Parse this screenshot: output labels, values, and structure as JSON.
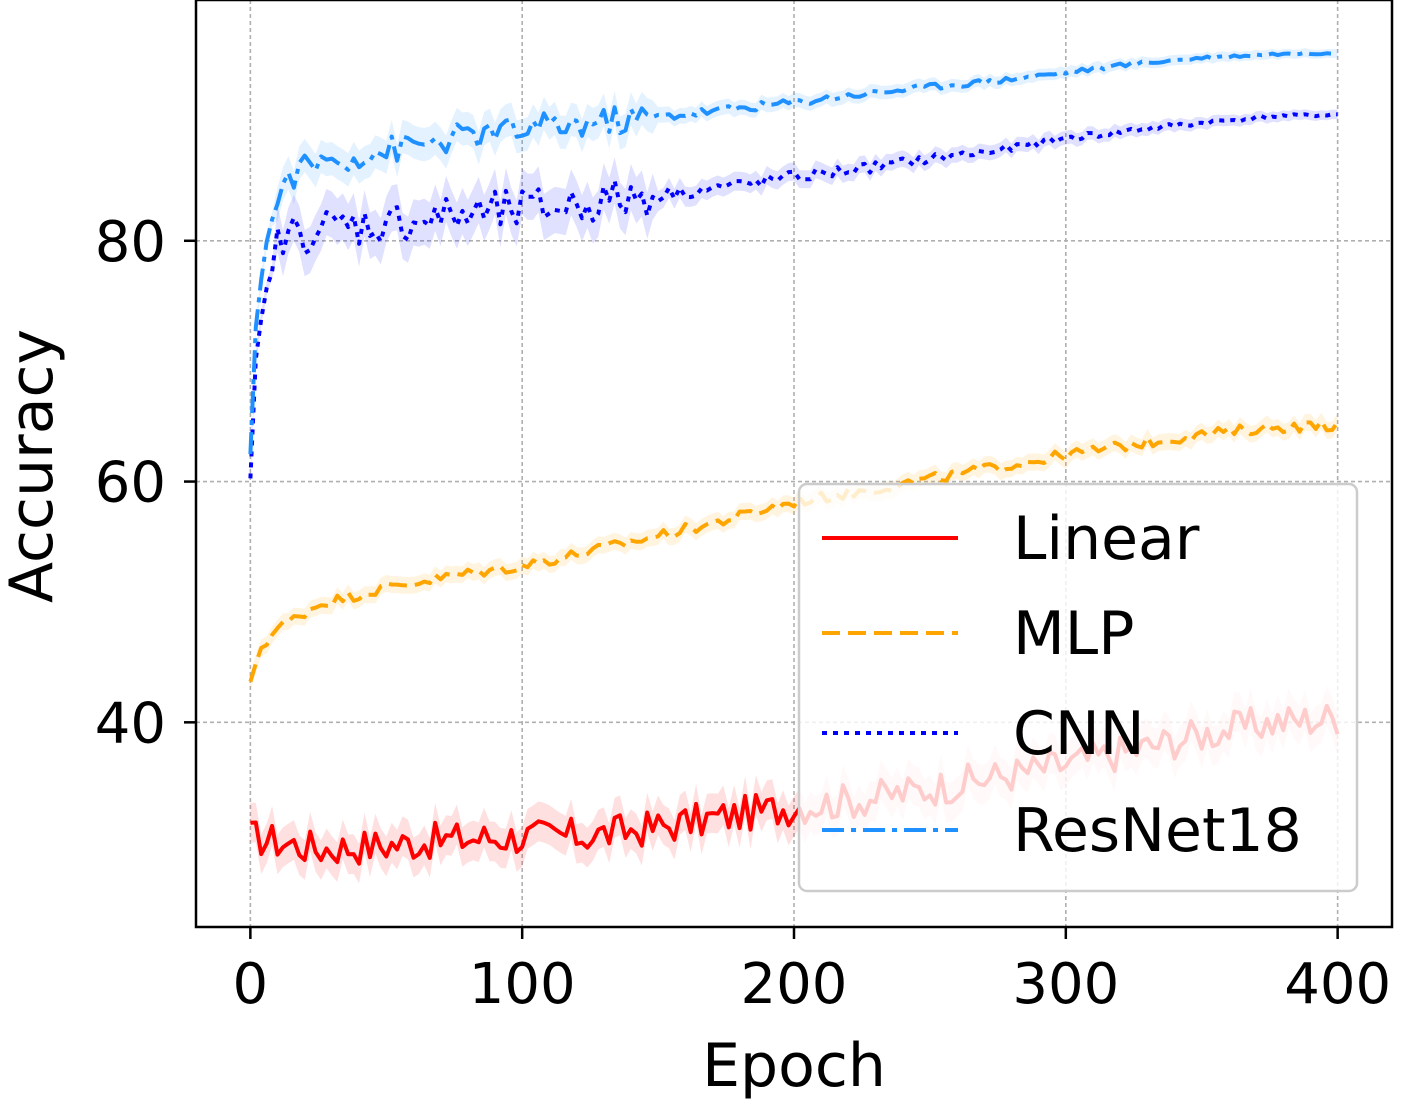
{
  "chart_data": {
    "type": "line",
    "title": "",
    "xlabel": "Epoch",
    "ylabel": "Accuracy",
    "xlim": [
      -20,
      420
    ],
    "ylim": [
      23,
      100
    ],
    "xticks": [
      0,
      100,
      200,
      300,
      400
    ],
    "xtick_labels": [
      "0",
      "100",
      "200",
      "300",
      "400"
    ],
    "yticks": [
      40,
      60,
      80
    ],
    "ytick_labels": [
      "40",
      "60",
      "80"
    ],
    "grid": true,
    "legend_position": "lower-right",
    "series": [
      {
        "name": "Linear",
        "color": "#ff0000",
        "style": "solid",
        "x": [
          0,
          25,
          50,
          75,
          100,
          125,
          150,
          175,
          200,
          225,
          250,
          275,
          300,
          325,
          350,
          375,
          400
        ],
        "y": [
          30.5,
          29.5,
          29.8,
          30.3,
          30.5,
          30.6,
          31.3,
          32.2,
          33.0,
          33.6,
          34.5,
          35.5,
          36.5,
          37.7,
          39.0,
          40.0,
          40.4
        ]
      },
      {
        "name": "MLP",
        "color": "#ffa500",
        "style": "dashed",
        "x": [
          0,
          3,
          10,
          25,
          50,
          75,
          100,
          125,
          150,
          175,
          200,
          225,
          250,
          275,
          300,
          325,
          350,
          375,
          400
        ],
        "y": [
          43.0,
          46.0,
          47.8,
          49.8,
          51.2,
          52.2,
          53.0,
          54.2,
          55.5,
          56.8,
          58.3,
          59.2,
          60.2,
          61.2,
          62.2,
          63.1,
          63.9,
          64.5,
          64.7
        ]
      },
      {
        "name": "CNN",
        "color": "#0000ff",
        "style": "dotted",
        "x": [
          0,
          2,
          5,
          10,
          15,
          25,
          50,
          75,
          100,
          125,
          150,
          175,
          200,
          225,
          250,
          275,
          300,
          325,
          350,
          375,
          400
        ],
        "y": [
          60.0,
          70.0,
          75.0,
          79.5,
          80.5,
          81.0,
          81.5,
          82.0,
          82.5,
          83.2,
          83.8,
          84.5,
          85.3,
          86.0,
          86.8,
          87.5,
          88.5,
          89.2,
          89.8,
          90.3,
          90.5
        ]
      },
      {
        "name": "ResNet18",
        "color": "#1e90ff",
        "style": "dashdot",
        "x": [
          0,
          2,
          5,
          10,
          15,
          25,
          50,
          75,
          100,
          125,
          150,
          175,
          200,
          225,
          250,
          275,
          300,
          325,
          350,
          375,
          400
        ],
        "y": [
          62.0,
          73.0,
          79.0,
          83.5,
          85.5,
          86.5,
          87.5,
          88.5,
          89.2,
          89.8,
          90.3,
          90.9,
          91.5,
          92.2,
          92.8,
          93.3,
          94.0,
          94.7,
          95.2,
          95.5,
          95.6
        ]
      }
    ]
  }
}
